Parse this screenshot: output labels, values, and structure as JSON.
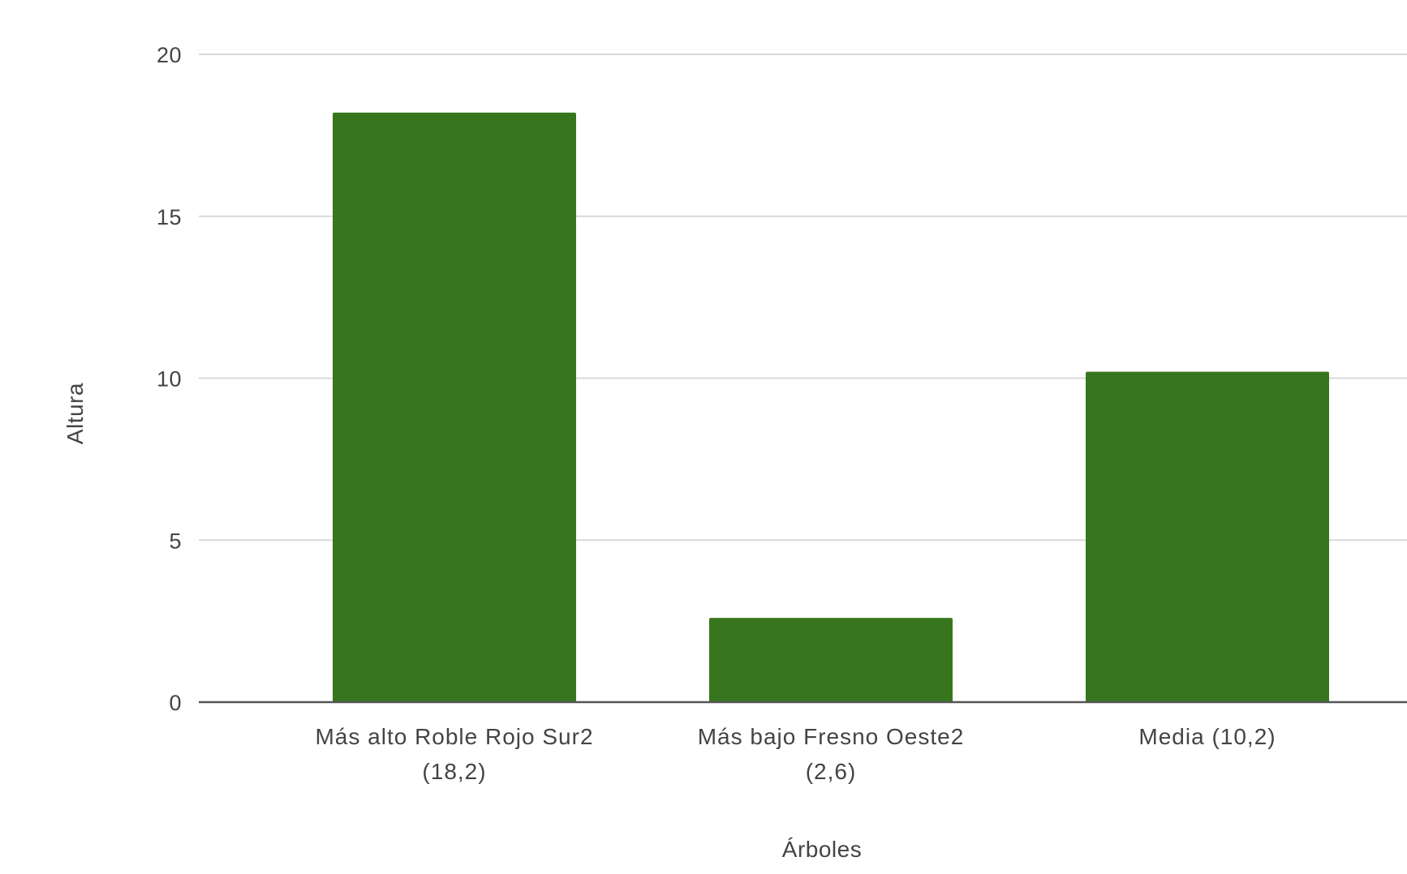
{
  "chart_data": {
    "type": "bar",
    "title": "",
    "xlabel": "Árboles",
    "ylabel": "Altura",
    "categories": [
      [
        "Más alto Roble Rojo Sur2",
        "(18,2)"
      ],
      [
        "Más bajo Fresno Oeste2",
        "(2,6)"
      ],
      [
        "Media (10,2)"
      ]
    ],
    "values": [
      18.2,
      2.6,
      10.2
    ],
    "ylim": [
      0,
      20
    ],
    "yticks": [
      "0",
      "5",
      "10",
      "15",
      "20"
    ],
    "grid": true,
    "legend": "none",
    "bar_color": "#38761d",
    "grid_color": "#d9d9d9",
    "baseline_color": "#555555"
  }
}
